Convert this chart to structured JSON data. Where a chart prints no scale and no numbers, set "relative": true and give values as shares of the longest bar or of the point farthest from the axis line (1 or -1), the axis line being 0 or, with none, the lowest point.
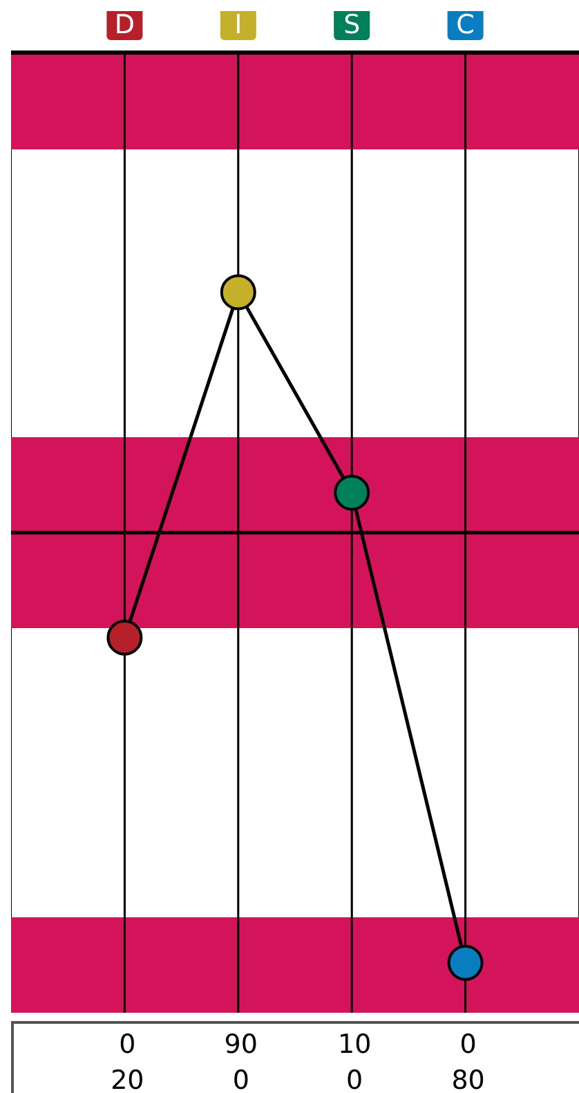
{
  "chart_data": {
    "type": "line",
    "relative": true,
    "categories": [
      "D",
      "I",
      "S",
      "C"
    ],
    "series": [
      {
        "color": "#000000",
        "colors": [
          "#b5202a",
          "#c4b02a",
          "#007f5b",
          "#0a7cc0"
        ],
        "values": [
          -0.244,
          0.559,
          0.093,
          -1
        ]
      }
    ],
    "marker": "circle",
    "grid": "x",
    "legend": false,
    "bands": [
      {
        "axis": "y",
        "from": 0.891,
        "to": 1.116,
        "color": "#d4145a"
      },
      {
        "axis": "y",
        "from": -0.222,
        "to": 0.222,
        "color": "#d4145a"
      },
      {
        "axis": "y",
        "from": -1.116,
        "to": -0.894,
        "color": "#d4145a"
      }
    ],
    "annotations": [
      "0",
      "90",
      "10",
      "0",
      "20",
      "0",
      "0",
      "80"
    ]
  }
}
